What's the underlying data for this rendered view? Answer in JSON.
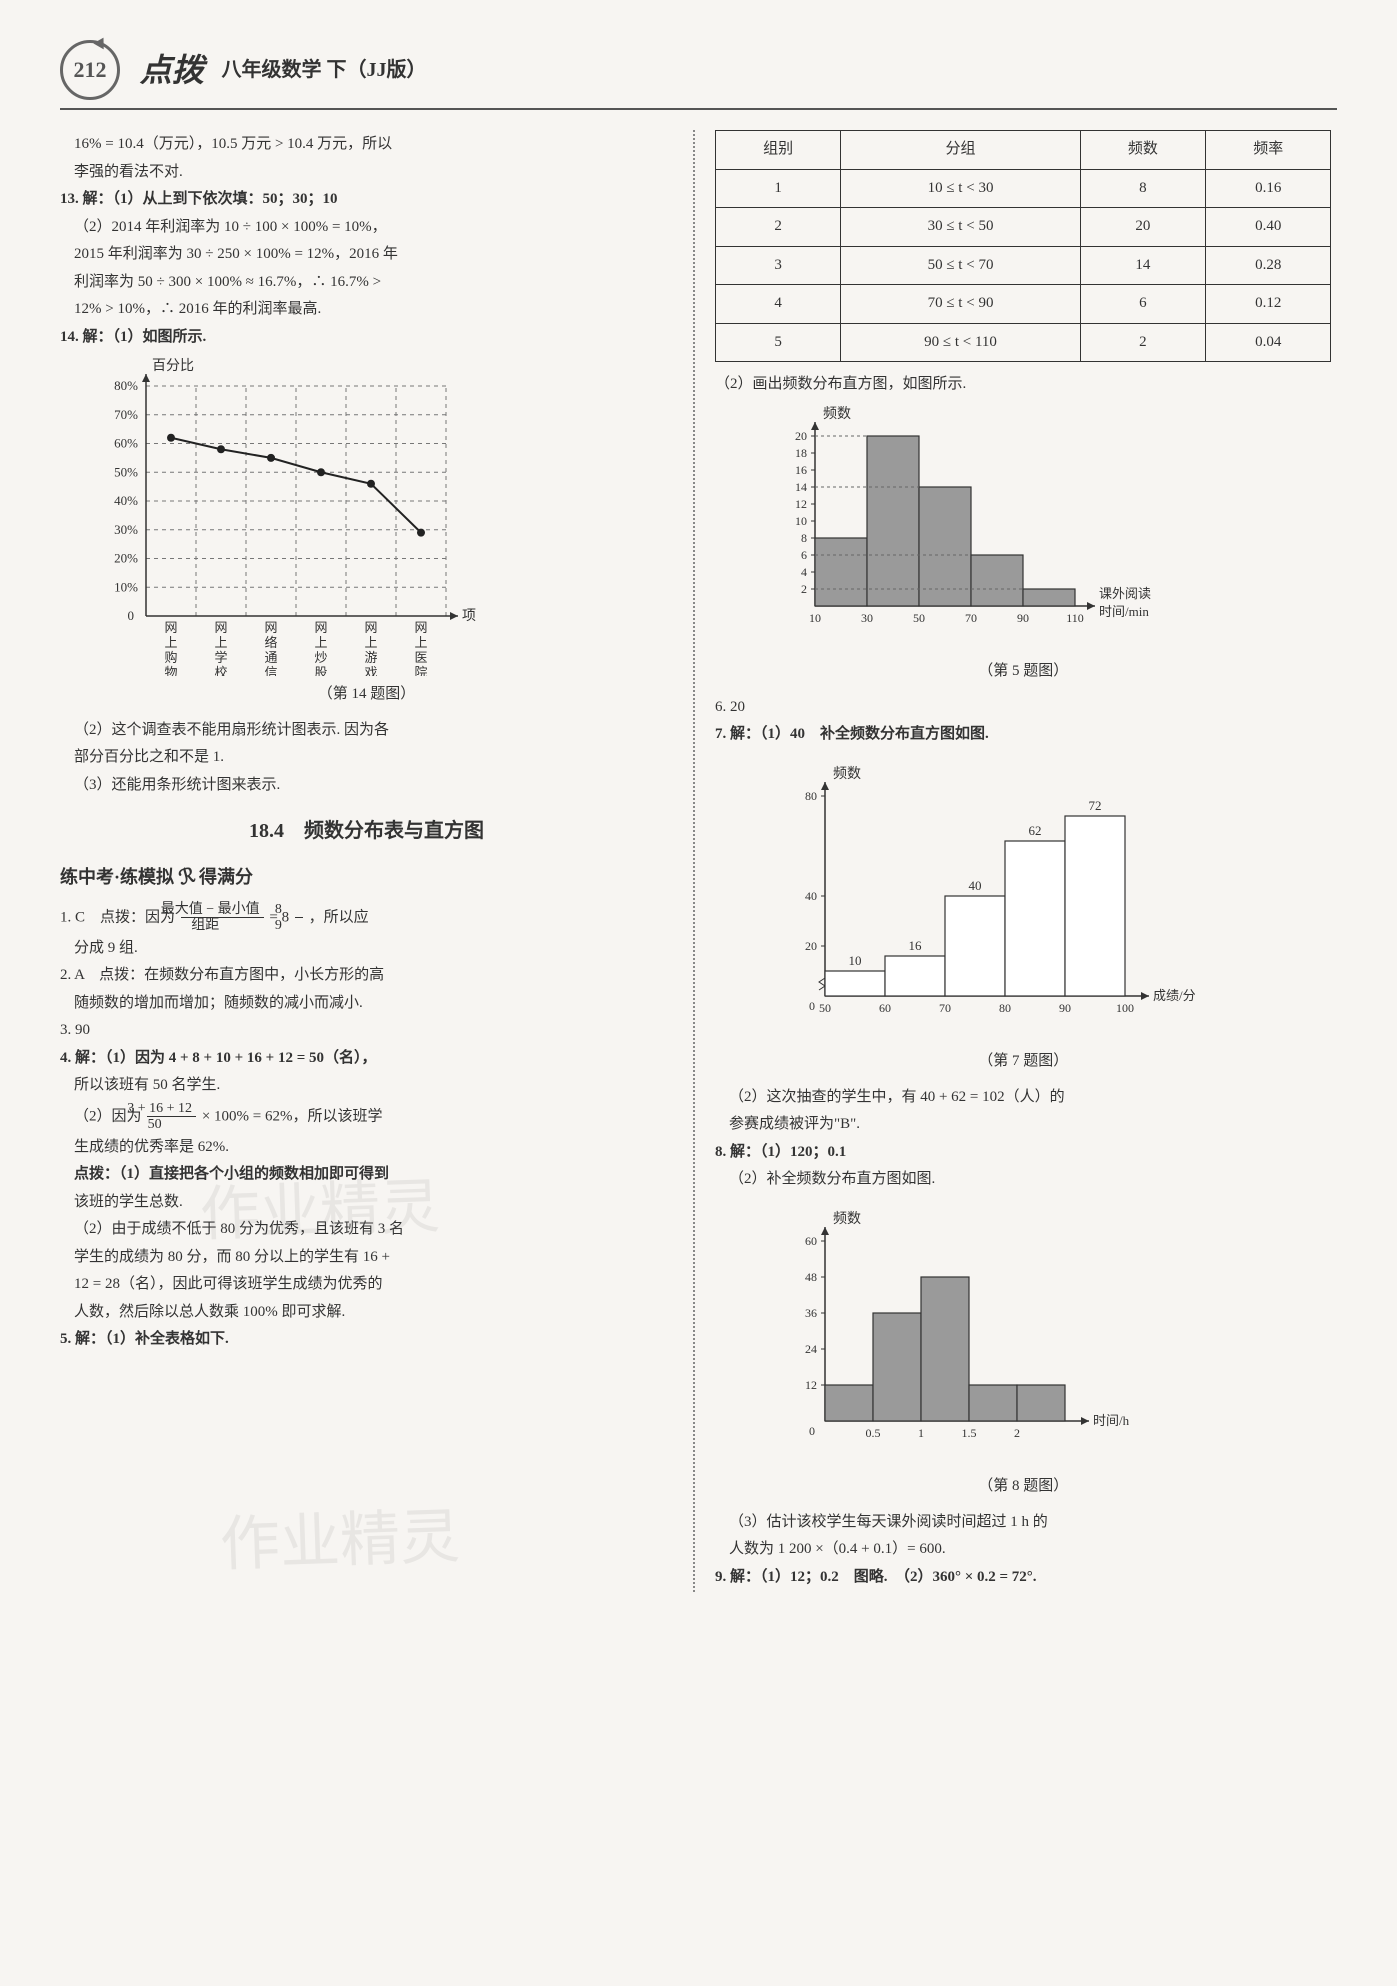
{
  "header": {
    "page_number": "212",
    "book_title": "点拨",
    "subtitle": "八年级数学 下（JJ版）"
  },
  "left": {
    "line1": "16% = 10.4（万元），10.5 万元 > 10.4 万元，所以",
    "line2": "李强的看法不对.",
    "q13_head": "13. 解：（1）从上到下依次填：50；30；10",
    "q13_2a": "（2）2014 年利润率为 10 ÷ 100 × 100% = 10%，",
    "q13_2b": "2015 年利润率为 30 ÷ 250 × 100% = 12%，2016 年",
    "q13_2c": "利润率为 50 ÷ 300 × 100% ≈ 16.7%，∴ 16.7% >",
    "q13_2d": "12% > 10%，∴ 2016 年的利润率最高.",
    "q14_head": "14. 解：（1）如图所示.",
    "chart14": {
      "type": "line",
      "y_label": "百分比",
      "x_label": "项目",
      "y_ticks": [
        "10%",
        "20%",
        "30%",
        "40%",
        "50%",
        "60%",
        "70%",
        "80%"
      ],
      "categories": [
        "网上购物",
        "网上学校",
        "网络通信",
        "网上炒股",
        "网上游戏",
        "网上医院"
      ],
      "values": [
        62,
        58,
        55,
        50,
        46,
        29
      ],
      "line_color": "#222222",
      "marker_color": "#222222",
      "grid_color": "#777777",
      "background": "#f7f5f2",
      "ylim": [
        0,
        80
      ],
      "caption": "（第 14 题图）"
    },
    "q14_2a": "（2）这个调查表不能用扇形统计图表示. 因为各",
    "q14_2b": "部分百分比之和不是 1.",
    "q14_3": "（3）还能用条形统计图来表示.",
    "section_title": "18.4　频数分布表与直方图",
    "sub_title_a": "练中考·练模拟",
    "sub_title_b": "得满分",
    "q1_a": "1. C　点拨：因为",
    "q1_frac_num": "最大值 − 最小值",
    "q1_frac_den": "组距",
    "q1_b": " = 8",
    "q1_frac2_num": "8",
    "q1_frac2_den": "9",
    "q1_c": "，所以应",
    "q1_d": "分成 9 组.",
    "q2_a": "2. A　点拨：在频数分布直方图中，小长方形的高",
    "q2_b": "随频数的增加而增加；随频数的减小而减小.",
    "q3": "3. 90",
    "q4_head": "4. 解：（1）因为 4 + 8 + 10 + 16 + 12 = 50（名），",
    "q4_1b": "所以该班有 50 名学生.",
    "q4_2a": "（2）因为",
    "q4_frac_num": "3 + 16 + 12",
    "q4_frac_den": "50",
    "q4_2b": " × 100% = 62%，所以该班学",
    "q4_2c": "生成绩的优秀率是 62%.",
    "q4_db_head": "点拨：（1）直接把各个小组的频数相加即可得到",
    "q4_db_b": "该班的学生总数.",
    "q4_db2a": "（2）由于成绩不低于 80 分为优秀，且该班有 3 名",
    "q4_db2b": "学生的成绩为 80 分，而 80 分以上的学生有 16 +",
    "q4_db2c": "12 = 28（名），因此可得该班学生成绩为优秀的",
    "q4_db2d": "人数，然后除以总人数乘 100% 即可求解.",
    "q5_head": "5. 解：（1）补全表格如下."
  },
  "right": {
    "table": {
      "headers": [
        "组别",
        "分组",
        "频数",
        "频率"
      ],
      "rows": [
        [
          "1",
          "10 ≤ t < 30",
          "8",
          "0.16"
        ],
        [
          "2",
          "30 ≤ t < 50",
          "20",
          "0.40"
        ],
        [
          "3",
          "50 ≤ t < 70",
          "14",
          "0.28"
        ],
        [
          "4",
          "70 ≤ t < 90",
          "6",
          "0.12"
        ],
        [
          "5",
          "90 ≤ t < 110",
          "2",
          "0.04"
        ]
      ]
    },
    "q5_2": "（2）画出频数分布直方图，如图所示.",
    "histo5": {
      "type": "histogram",
      "y_label": "频数",
      "x_label_a": "课外阅读",
      "x_label_b": "时间/min",
      "x_ticks": [
        "10",
        "30",
        "50",
        "70",
        "90",
        "110"
      ],
      "y_ticks": [
        "2",
        "4",
        "6",
        "8",
        "10",
        "12",
        "14",
        "16",
        "18",
        "20"
      ],
      "values": [
        8,
        20,
        14,
        6,
        2
      ],
      "bar_color": "#9a9a9a",
      "bar_border": "#333333",
      "grid_color": "#666666",
      "background": "#f7f5f2",
      "ylim": [
        0,
        20
      ],
      "caption": "（第 5 题图）"
    },
    "q6": "6. 20",
    "q7_head": "7. 解：（1）40　补全频数分布直方图如图.",
    "histo7": {
      "type": "histogram",
      "y_label": "频数",
      "x_label": "成绩/分",
      "x_ticks": [
        "50",
        "60",
        "70",
        "80",
        "90",
        "100"
      ],
      "y_ticks": [
        "20",
        "40",
        "80"
      ],
      "values": [
        10,
        16,
        40,
        62,
        72
      ],
      "value_labels": [
        "10",
        "16",
        "40",
        "62",
        "72"
      ],
      "bar_color": "#ffffff",
      "bar_border": "#333333",
      "background": "#f7f5f2",
      "ylim": [
        0,
        80
      ],
      "caption": "（第 7 题图）"
    },
    "q7_2a": "（2）这次抽查的学生中，有 40 + 62 = 102（人）的",
    "q7_2b": "参赛成绩被评为\"B\".",
    "q8_head": "8. 解：（1）120；0.1",
    "q8_2": "（2）补全频数分布直方图如图.",
    "histo8": {
      "type": "histogram",
      "y_label": "频数",
      "x_label": "时间/h",
      "x_ticks": [
        "0.5",
        "1",
        "1.5",
        "2"
      ],
      "y_ticks": [
        "12",
        "24",
        "36",
        "48",
        "60"
      ],
      "values": [
        12,
        36,
        48,
        12,
        12
      ],
      "bar_color": "#9a9a9a",
      "bar_border": "#333333",
      "background": "#f7f5f2",
      "ylim": [
        0,
        60
      ],
      "caption": "（第 8 题图）"
    },
    "q8_3a": "（3）估计该校学生每天课外阅读时间超过 1 h 的",
    "q8_3b": "人数为 1 200 ×（0.4 + 0.1）= 600.",
    "q9": "9. 解：（1）12；0.2　图略.　（2）360° × 0.2 = 72°."
  },
  "watermarks": [
    "作业精灵",
    "作业精灵"
  ]
}
